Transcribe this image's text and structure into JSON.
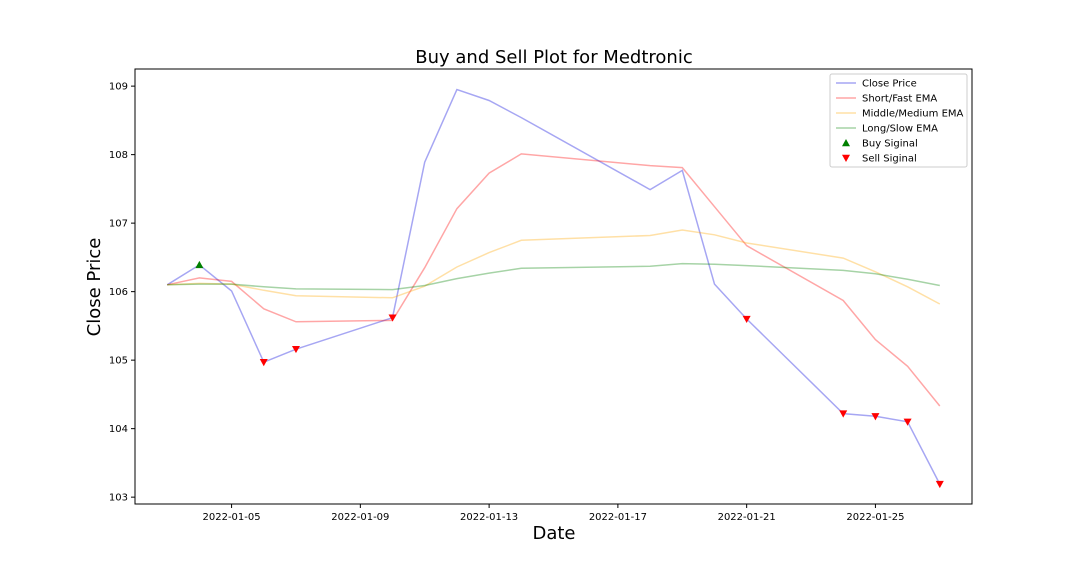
{
  "chart_data": {
    "type": "line",
    "title": "Buy and Sell Plot for Medtronic",
    "xlabel": "Date",
    "ylabel": "Close Price",
    "x_ticks": [
      "2022-01-05",
      "2022-01-09",
      "2022-01-13",
      "2022-01-17",
      "2022-01-21",
      "2022-01-25"
    ],
    "y_ticks": [
      103,
      104,
      105,
      106,
      107,
      108,
      109
    ],
    "xlim": [
      "2022-01-02",
      "2022-01-28"
    ],
    "ylim": [
      102.9,
      109.25
    ],
    "grid": false,
    "legend_position": "top-right",
    "x": [
      "2022-01-03",
      "2022-01-04",
      "2022-01-05",
      "2022-01-06",
      "2022-01-07",
      "2022-01-10",
      "2022-01-11",
      "2022-01-12",
      "2022-01-13",
      "2022-01-14",
      "2022-01-18",
      "2022-01-19",
      "2022-01-20",
      "2022-01-21",
      "2022-01-24",
      "2022-01-25",
      "2022-01-26",
      "2022-01-27"
    ],
    "series": [
      {
        "name": "Close Price",
        "color": "#0000dd",
        "opacity": 0.35,
        "values": [
          106.1,
          106.39,
          106.01,
          104.97,
          105.16,
          105.62,
          107.89,
          108.95,
          108.79,
          108.54,
          107.49,
          107.77,
          106.11,
          105.6,
          104.22,
          104.18,
          104.1,
          103.19
        ]
      },
      {
        "name": "Short/Fast EMA",
        "color": "#ff0000",
        "opacity": 0.35,
        "values": [
          106.1,
          106.2,
          106.15,
          105.75,
          105.56,
          105.58,
          106.35,
          107.21,
          107.73,
          108.01,
          107.84,
          107.81,
          107.24,
          106.67,
          105.87,
          105.3,
          104.91,
          104.33
        ]
      },
      {
        "name": "Middle/Medium EMA",
        "color": "#ffa500",
        "opacity": 0.35,
        "values": [
          106.1,
          106.12,
          106.11,
          106.02,
          105.94,
          105.91,
          106.08,
          106.36,
          106.57,
          106.75,
          106.82,
          106.9,
          106.83,
          106.71,
          106.49,
          106.29,
          106.07,
          105.82
        ]
      },
      {
        "name": "Long/Slow EMA",
        "color": "#008000",
        "opacity": 0.35,
        "values": [
          106.1,
          106.11,
          106.11,
          106.07,
          106.04,
          106.03,
          106.09,
          106.19,
          106.27,
          106.34,
          106.37,
          106.41,
          106.4,
          106.38,
          106.31,
          106.26,
          106.18,
          106.09
        ]
      }
    ],
    "buy_signals": {
      "name": "Buy Siginal",
      "color": "#008000",
      "marker": "triangle-up",
      "points": [
        {
          "x": "2022-01-04",
          "y": 106.39
        }
      ]
    },
    "sell_signals": {
      "name": "Sell Siginal",
      "color": "#ff0000",
      "marker": "triangle-down",
      "points": [
        {
          "x": "2022-01-06",
          "y": 104.97
        },
        {
          "x": "2022-01-07",
          "y": 105.16
        },
        {
          "x": "2022-01-10",
          "y": 105.62
        },
        {
          "x": "2022-01-21",
          "y": 105.6
        },
        {
          "x": "2022-01-24",
          "y": 104.22
        },
        {
          "x": "2022-01-25",
          "y": 104.18
        },
        {
          "x": "2022-01-26",
          "y": 104.1
        },
        {
          "x": "2022-01-27",
          "y": 103.19
        }
      ]
    }
  }
}
